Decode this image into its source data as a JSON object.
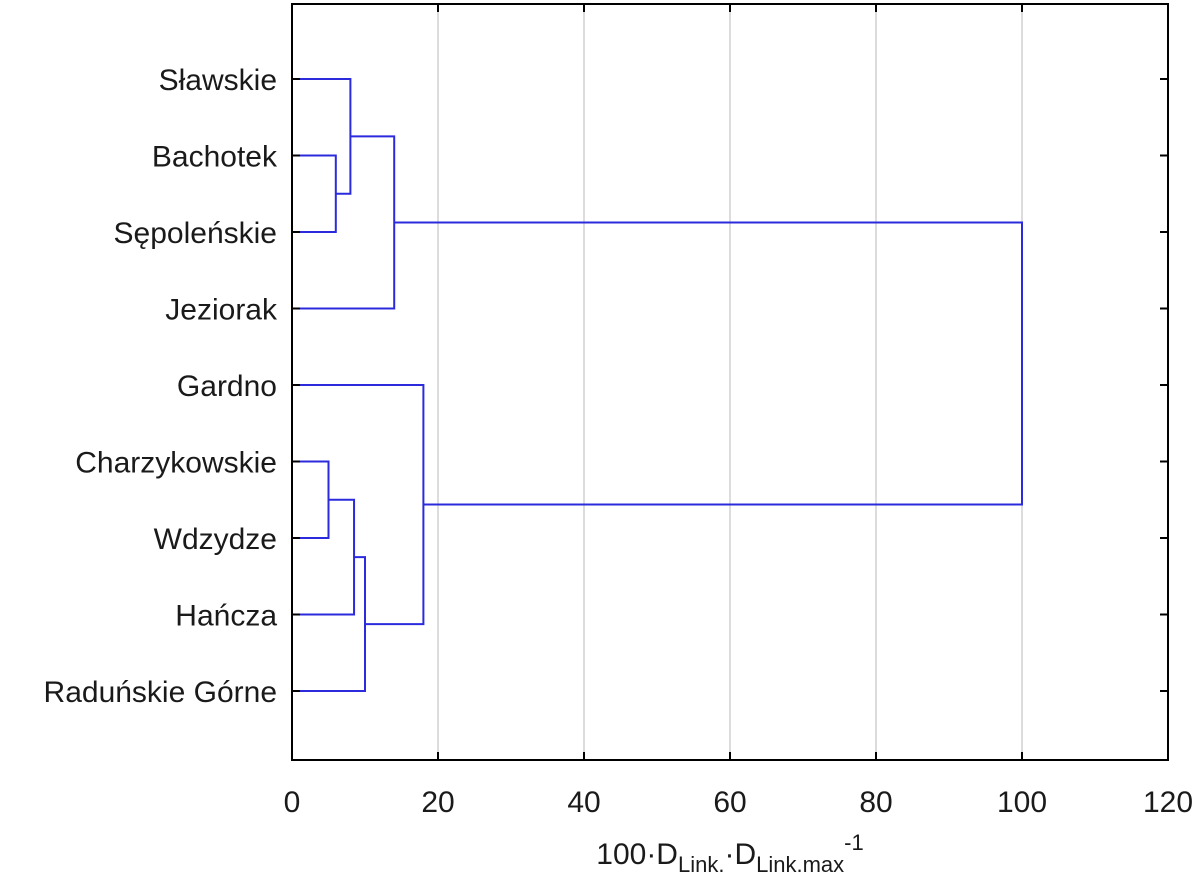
{
  "chart_data": {
    "type": "dendrogram",
    "orientation": "horizontal",
    "xlabel": {
      "prefix": "100·D",
      "sub1": "Link.",
      "middle": "·D",
      "sub2": "Link.max",
      "sup": "-1"
    },
    "xlim": [
      0,
      120
    ],
    "x_ticks": [
      0,
      20,
      40,
      60,
      80,
      100,
      120
    ],
    "x_tick_labels": [
      "0",
      "20",
      "40",
      "60",
      "80",
      "100",
      "120"
    ],
    "grid_vertical": true,
    "line_color": "#2b2bdd",
    "grid_color": "#d0d0d0",
    "leaves": [
      "Sławskie",
      "Bachotek",
      "Sępoleńskie",
      "Jeziorak",
      "Gardno",
      "Charzykowskie",
      "Wdzydze",
      "Hańcza",
      "Raduńskie Górne"
    ],
    "merges": [
      {
        "a": "Bachotek",
        "b": "Sępoleńskie",
        "distance": 6
      },
      {
        "a": "Sławskie",
        "b": "M1",
        "distance": 8
      },
      {
        "a": "M2",
        "b": "Jeziorak",
        "distance": 14
      },
      {
        "a": "Charzykowskie",
        "b": "Wdzydze",
        "distance": 5
      },
      {
        "a": "M4",
        "b": "Hańcza",
        "distance": 8.5
      },
      {
        "a": "M5",
        "b": "Raduńskie Górne",
        "distance": 10
      },
      {
        "a": "Gardno",
        "b": "M6",
        "distance": 18
      },
      {
        "a": "M3",
        "b": "M7",
        "distance": 100
      }
    ]
  }
}
